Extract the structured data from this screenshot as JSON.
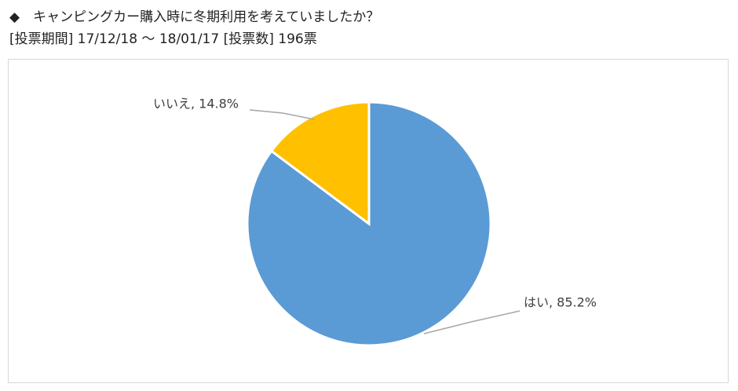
{
  "chart_data": {
    "type": "pie",
    "title": "◆　キャンピングカー購入時に冬期利用を考えていましたか？",
    "subtitle": "[投票期間] 17/12/18 ～ 18/01/17 [投票数] 196票",
    "categories": [
      "はい",
      "いいえ"
    ],
    "values": [
      85.2,
      14.8
    ],
    "value_labels": [
      "はい, 85.2%",
      "いいえ, 14.8%"
    ],
    "colors": [
      "#5b9bd5",
      "#ffc000"
    ]
  }
}
